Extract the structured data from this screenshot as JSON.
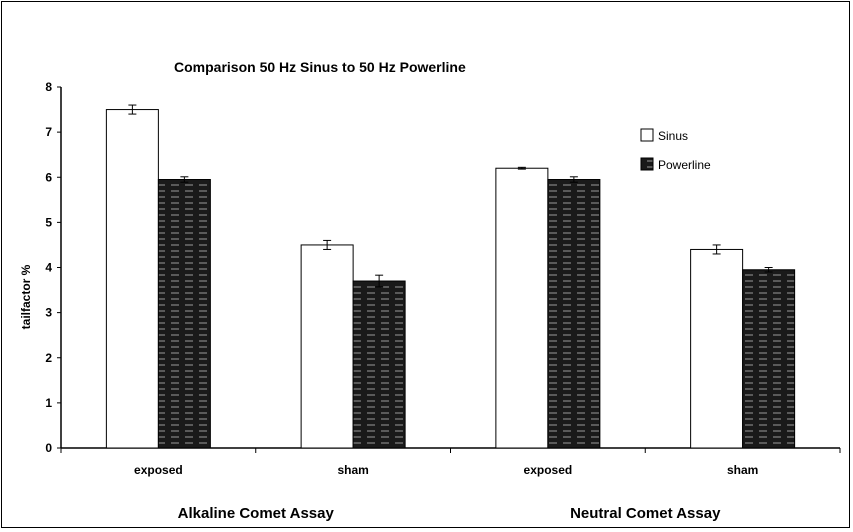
{
  "chart_data": {
    "type": "bar",
    "title": "Comparison 50 Hz Sinus to 50 Hz Powerline",
    "ylabel": "tailfactor  %",
    "xlabel": "",
    "ylim": [
      0,
      8
    ],
    "yticks": [
      0,
      1,
      2,
      3,
      4,
      5,
      6,
      7,
      8
    ],
    "categories": [
      "exposed",
      "sham",
      "exposed",
      "sham"
    ],
    "groups": [
      {
        "label": "Alkaline Comet Assay",
        "categories": [
          0,
          1
        ]
      },
      {
        "label": "Neutral Comet Assay",
        "categories": [
          2,
          3
        ]
      }
    ],
    "series": [
      {
        "name": "Sinus",
        "values": [
          7.5,
          4.5,
          6.2,
          4.4
        ],
        "errors": [
          0.1,
          0.1,
          0.02,
          0.1
        ],
        "fill": "#ffffff"
      },
      {
        "name": "Powerline",
        "values": [
          5.95,
          3.7,
          5.95,
          3.95
        ],
        "errors": [
          0.06,
          0.13,
          0.06,
          0.05
        ],
        "fill": "#1a1a1a"
      }
    ],
    "legend_position": "top-right",
    "grid": false
  }
}
